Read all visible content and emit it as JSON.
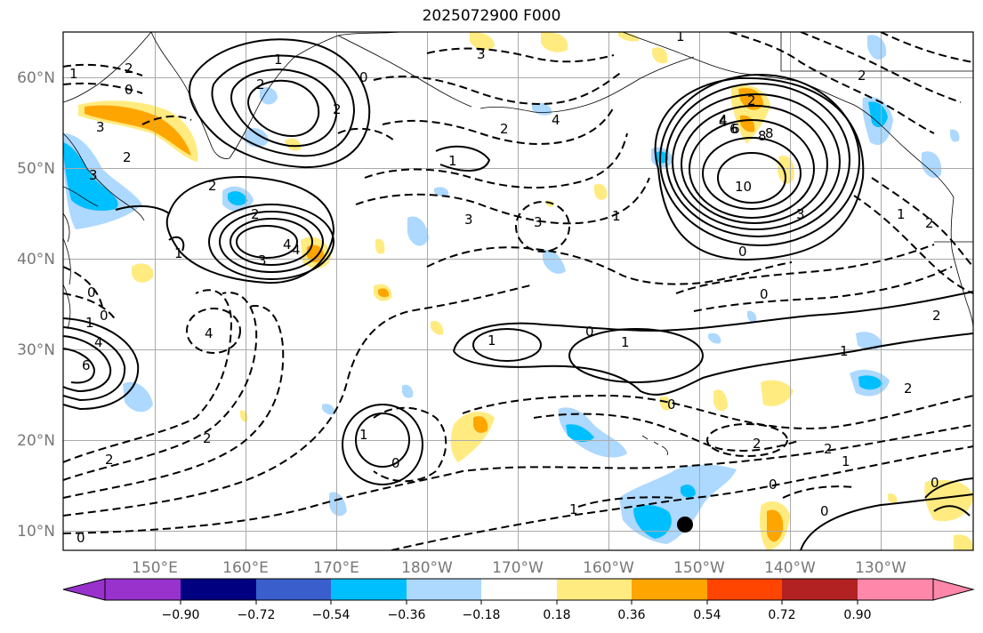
{
  "title": "2025072900 F000",
  "lon_ticks": [
    "150°E",
    "160°E",
    "170°E",
    "180°W",
    "170°W",
    "160°W",
    "150°W",
    "140°W",
    "130°W"
  ],
  "lat_ticks": [
    "60°N",
    "50°N",
    "40°N",
    "30°N",
    "20°N",
    "10°N"
  ],
  "colorbar": {
    "labels": [
      "−0.90",
      "−0.72",
      "−0.54",
      "−0.36",
      "−0.18",
      "0.18",
      "0.36",
      "0.54",
      "0.72",
      "0.90"
    ],
    "colors": [
      "#9932cc",
      "#000080",
      "#3a5fcd",
      "#00bfff",
      "#add8ff",
      "#ffffff",
      "#ffeb80",
      "#ffa500",
      "#ff4500",
      "#b22222",
      "#ff88aa"
    ]
  },
  "fill_colors": {
    "light_blue": "#add8ff",
    "blue": "#00bfff",
    "yellow": "#ffeb80",
    "orange": "#ffa500"
  },
  "contour_labels": [
    "1",
    "2",
    "0",
    "3",
    "2",
    "3",
    "2",
    "1",
    "2",
    "4",
    "3",
    "2",
    "6",
    "8",
    "4",
    "2",
    "10",
    "8",
    "6",
    "4",
    "0",
    "3",
    "1",
    "2",
    "1",
    "0",
    "4",
    "3",
    "0",
    "1",
    "1",
    "0",
    "4",
    "3",
    "6",
    "4",
    "2",
    "1",
    "0",
    "2",
    "2",
    "0",
    "1",
    "0",
    "2",
    "2",
    "1",
    "0",
    "1",
    "2",
    "1",
    "2",
    "0",
    "1",
    "1",
    "0",
    "0",
    "1",
    "2",
    "3",
    "4",
    "0",
    "2"
  ],
  "marker": "storm-location"
}
